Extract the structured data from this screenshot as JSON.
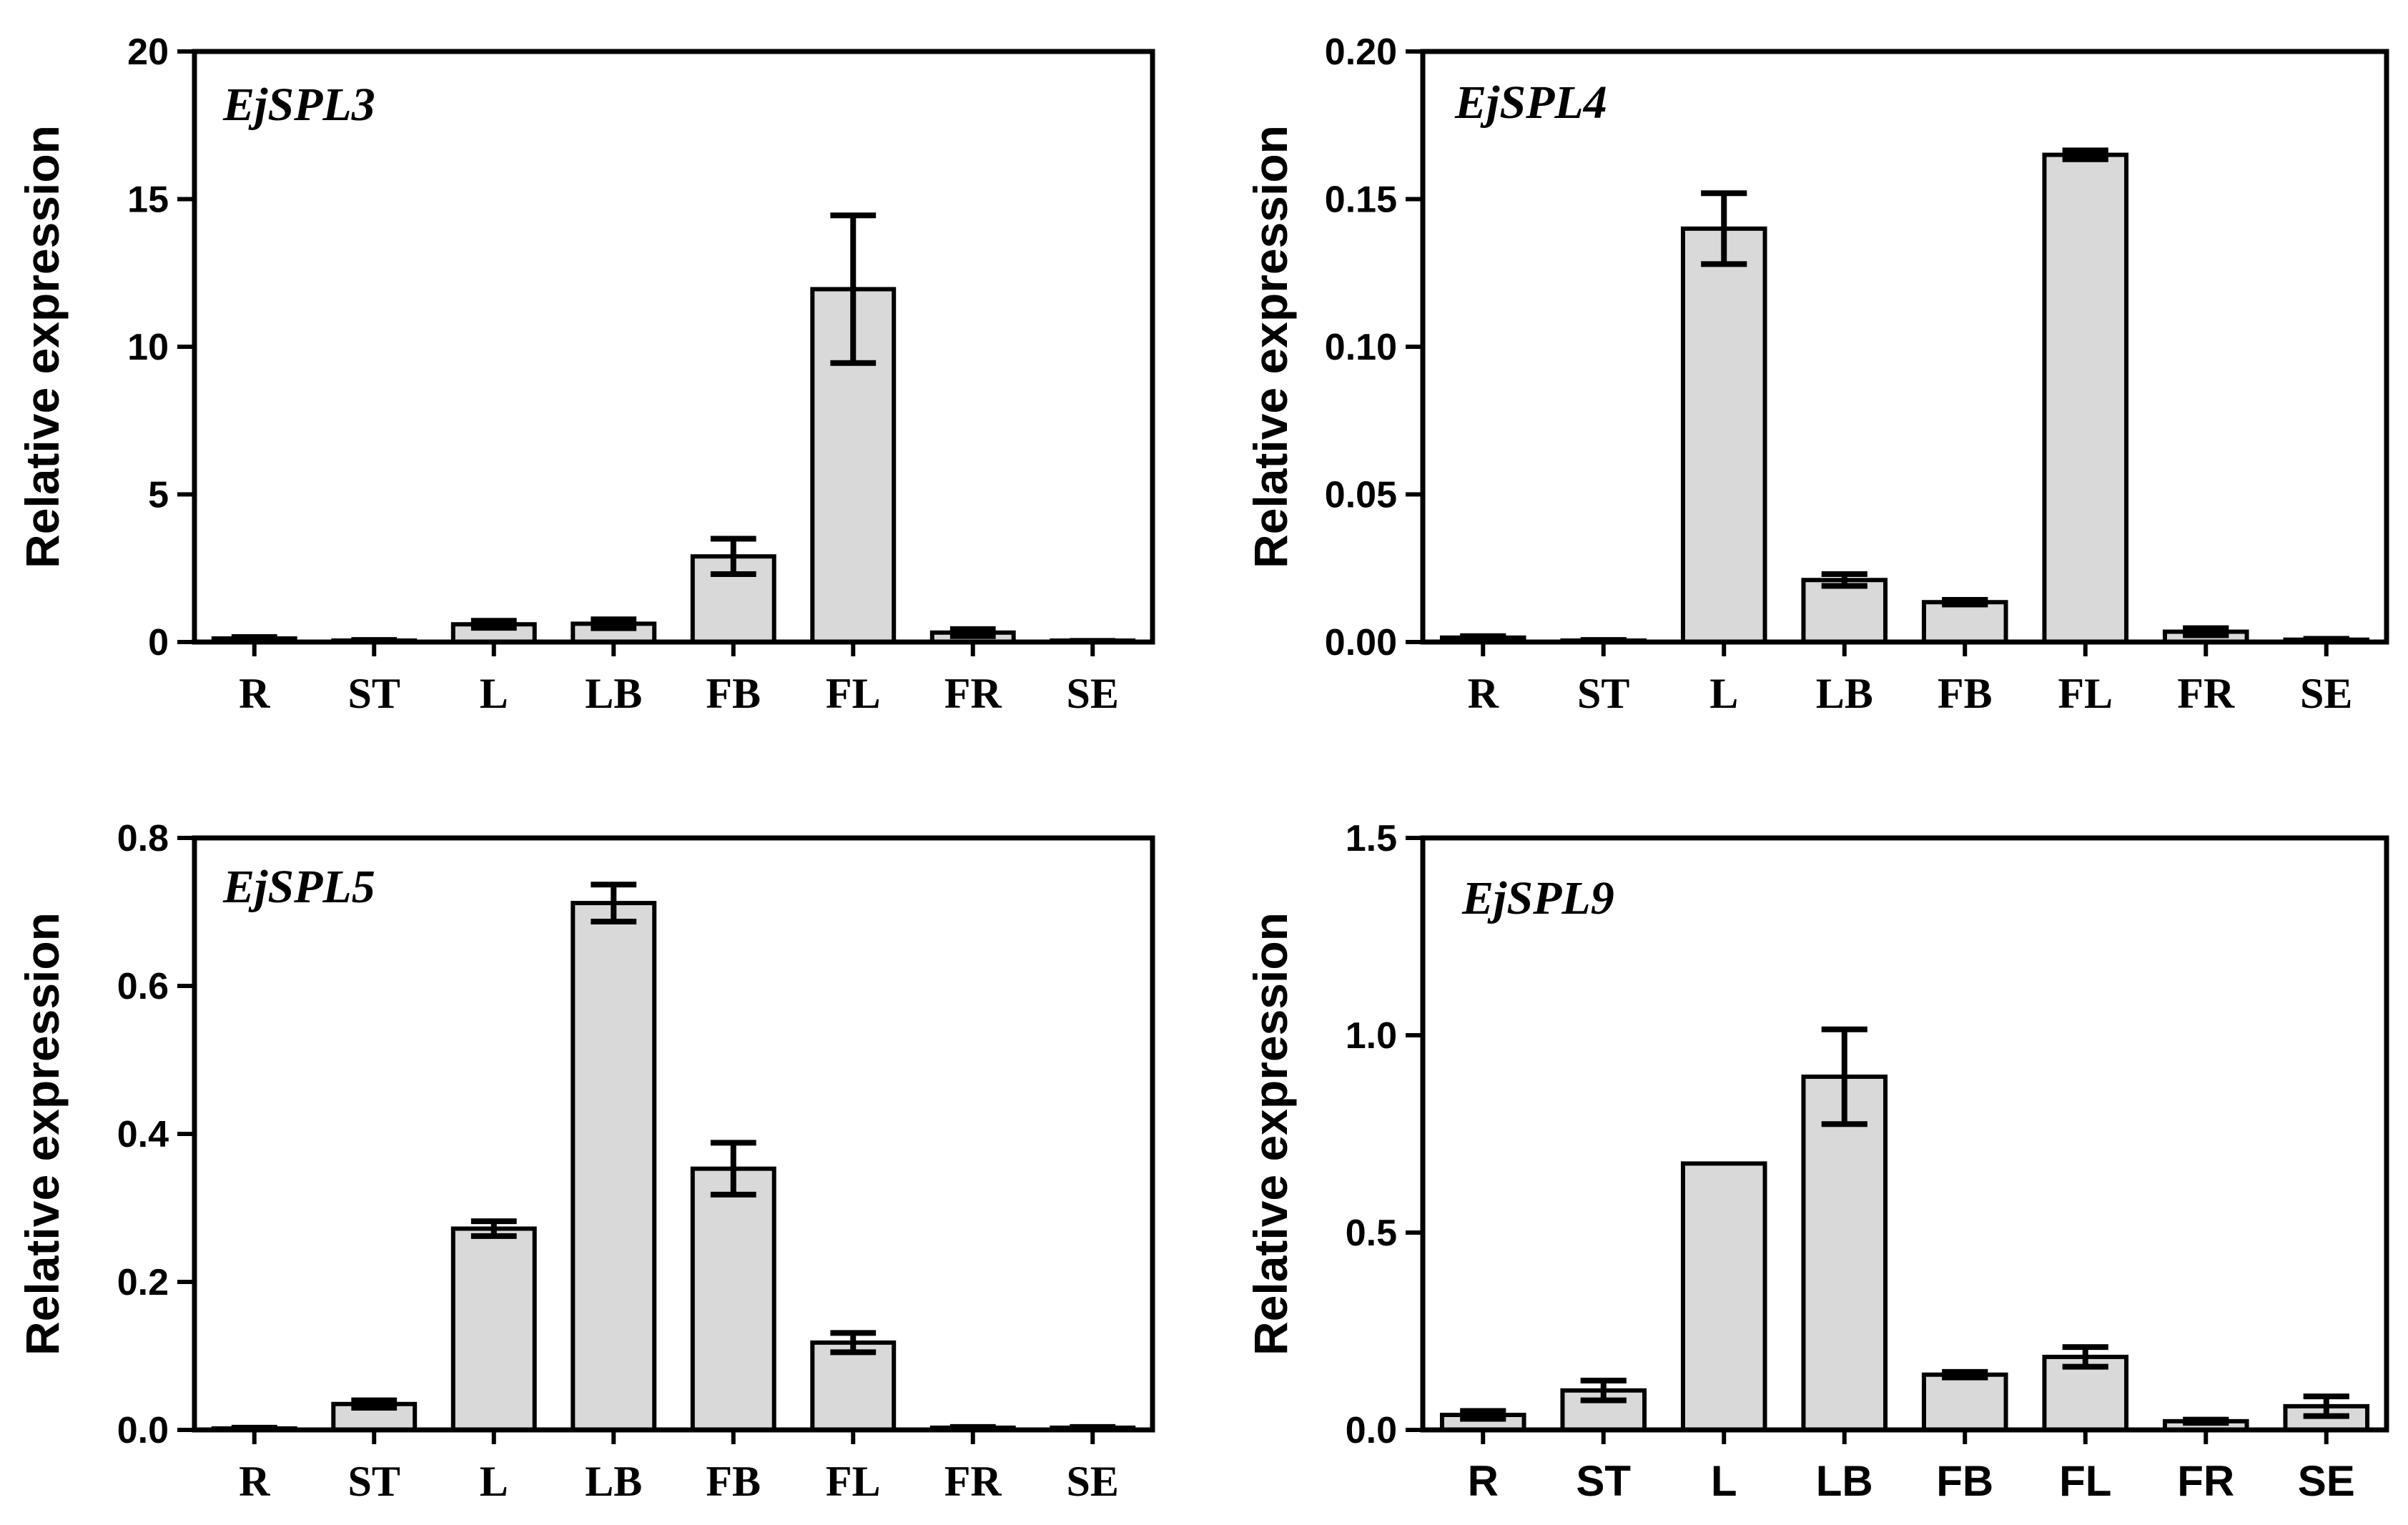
{
  "figure": {
    "colors": {
      "bar_fill": "#d9d9d9",
      "stroke": "#000000",
      "background": "#ffffff"
    }
  },
  "chart_data": [
    {
      "type": "bar",
      "title": "EjSPL3",
      "ylabel": "Relative expression",
      "xlabel": "",
      "categories": [
        "R",
        "ST",
        "L",
        "LB",
        "FB",
        "FL",
        "FR",
        "SE"
      ],
      "values": [
        0.12,
        0.05,
        0.6,
        0.62,
        2.9,
        11.95,
        0.32,
        0.03
      ],
      "errors": [
        0.05,
        0.02,
        0.12,
        0.15,
        0.6,
        2.5,
        0.12,
        0.01
      ],
      "ylim": [
        0,
        20
      ],
      "yticks": [
        "0",
        "5",
        "10",
        "15",
        "20"
      ],
      "ytick_values": [
        0,
        5,
        10,
        15,
        20
      ],
      "tick_font": "serif"
    },
    {
      "type": "bar",
      "title": "EjSPL4",
      "ylabel": "Relative expression",
      "xlabel": "",
      "categories": [
        "R",
        "ST",
        "L",
        "LB",
        "FB",
        "FL",
        "FR",
        "SE"
      ],
      "values": [
        0.0015,
        0.0005,
        0.14,
        0.021,
        0.0135,
        0.165,
        0.0035,
        0.0008
      ],
      "errors": [
        0.0005,
        0.0002,
        0.012,
        0.002,
        0.0008,
        0.0015,
        0.0012,
        0.0003
      ],
      "ylim": [
        0,
        0.2
      ],
      "yticks": [
        "0.00",
        "0.05",
        "0.10",
        "0.15",
        "0.20"
      ],
      "ytick_values": [
        0,
        0.05,
        0.1,
        0.15,
        0.2
      ],
      "tick_font": "serif"
    },
    {
      "type": "bar",
      "title": "EjSPL5",
      "ylabel": "Relative expression",
      "xlabel": "",
      "categories": [
        "R",
        "ST",
        "L",
        "LB",
        "FB",
        "FL",
        "FR",
        "SE"
      ],
      "values": [
        0.002,
        0.035,
        0.272,
        0.712,
        0.353,
        0.118,
        0.003,
        0.003
      ],
      "errors": [
        0.001,
        0.005,
        0.01,
        0.025,
        0.035,
        0.013,
        0.001,
        0.001
      ],
      "ylim": [
        0,
        0.8
      ],
      "yticks": [
        "0.0",
        "0.2",
        "0.4",
        "0.6",
        "0.8"
      ],
      "ytick_values": [
        0,
        0.2,
        0.4,
        0.6,
        0.8
      ],
      "tick_font": "serif"
    },
    {
      "type": "bar",
      "title": "EjSPL9",
      "ylabel": "Relative expression",
      "xlabel": "",
      "categories": [
        "R",
        "ST",
        "L",
        "LB",
        "FB",
        "FL",
        "FR",
        "SE"
      ],
      "values": [
        0.038,
        0.1,
        0.675,
        0.895,
        0.14,
        0.185,
        0.022,
        0.06
      ],
      "errors": [
        0.01,
        0.025,
        0.0,
        0.12,
        0.007,
        0.025,
        0.004,
        0.025
      ],
      "ylim": [
        0,
        1.5
      ],
      "yticks": [
        "0.0",
        "0.5",
        "1.0",
        "1.5"
      ],
      "ytick_values": [
        0,
        0.5,
        1.0,
        1.5
      ],
      "tick_font": "sans"
    }
  ]
}
